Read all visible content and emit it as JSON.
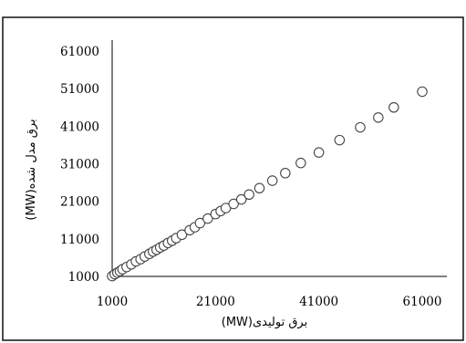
{
  "chart_data": {
    "type": "scatter",
    "title": "",
    "xlabel": "برق تولیدی(MW)",
    "ylabel": "برق مدل شده(MW)",
    "xlim": [
      1000,
      61000
    ],
    "ylim": [
      1000,
      61000
    ],
    "x_ticks": [
      "1000",
      "21000",
      "41000",
      "61000"
    ],
    "y_ticks": [
      "1000",
      "11000",
      "21000",
      "31000",
      "41000",
      "51000",
      "61000"
    ],
    "grid": false,
    "legend": "none",
    "point_style": {
      "fill": "#ffffff",
      "stroke": "#444444"
    },
    "series": [
      {
        "x": [
          1000,
          1500,
          2000,
          2500,
          3000,
          3800,
          4700,
          5600,
          6500,
          7300,
          8200,
          8900,
          9600,
          10300,
          11000,
          11800,
          12600,
          13400,
          14500,
          16000,
          17000,
          18000,
          19500,
          21000,
          22000,
          23000,
          24500,
          26000,
          27500,
          29500,
          32000,
          34500,
          37500,
          41000,
          45000,
          49000,
          52500,
          55500,
          61000
        ],
        "y": [
          1100,
          1600,
          2000,
          2400,
          2900,
          3500,
          4200,
          5000,
          5600,
          6300,
          7000,
          7600,
          8100,
          8700,
          9200,
          9900,
          10500,
          11200,
          12100,
          13300,
          14100,
          15200,
          16400,
          17600,
          18400,
          19200,
          20300,
          21500,
          22800,
          24500,
          26500,
          28500,
          31200,
          34000,
          37300,
          40700,
          43300,
          46000,
          50200
        ]
      }
    ]
  }
}
